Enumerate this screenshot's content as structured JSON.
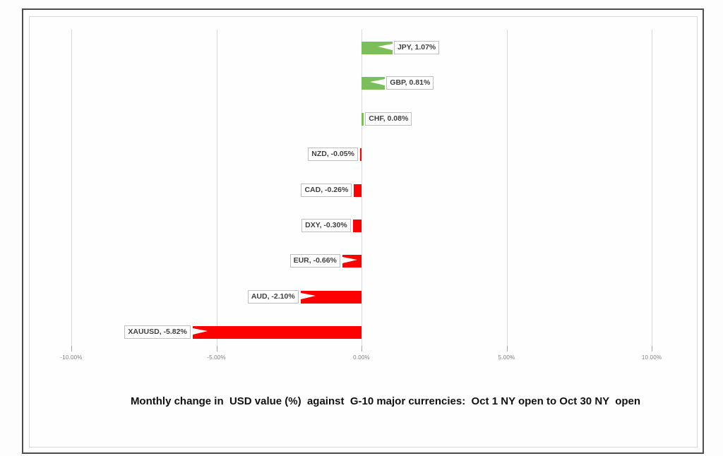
{
  "chart_data": {
    "type": "bar",
    "orientation": "horizontal",
    "title": "Monthly change in  USD value (%)  against  G-10 major currencies:  Oct 1 NY open to Oct 30 NY  open",
    "categories": [
      "JPY",
      "GBP",
      "CHF",
      "NZD",
      "CAD",
      "DXY",
      "EUR",
      "AUD",
      "XAUUSD"
    ],
    "values": [
      1.07,
      0.81,
      0.08,
      -0.05,
      -0.26,
      -0.3,
      -0.66,
      -2.1,
      -5.82
    ],
    "data_labels": [
      "JPY, 1.07%",
      "GBP, 0.81%",
      "CHF, 0.08%",
      "NZD, -0.05%",
      "CAD, -0.26%",
      "DXY, -0.30%",
      "EUR, -0.66%",
      "AUD, -2.10%",
      "XAUUSD, -5.82%"
    ],
    "xlabel": "",
    "ylabel": "",
    "x_ticks": [
      "-10.00%",
      "-5.00%",
      "0.00%",
      "5.00%",
      "10.00%"
    ],
    "x_tick_values": [
      -10,
      -5,
      0,
      5,
      10
    ],
    "xlim": [
      -10,
      10
    ],
    "grid": "vertical-only",
    "legend": "none"
  },
  "colors": {
    "positive_bar": "#7CBE5A",
    "negative_bar": "#FE0000",
    "gridline": "#D9D9D9",
    "tick": "#A6A6A6",
    "axis_text": "#7F7F7F",
    "label_text": "#3F3F3F",
    "label_border": "#BFBFBF",
    "frame_border": "#4D4D4D",
    "inner_border": "#D9D9D9",
    "title_text": "#111111"
  }
}
